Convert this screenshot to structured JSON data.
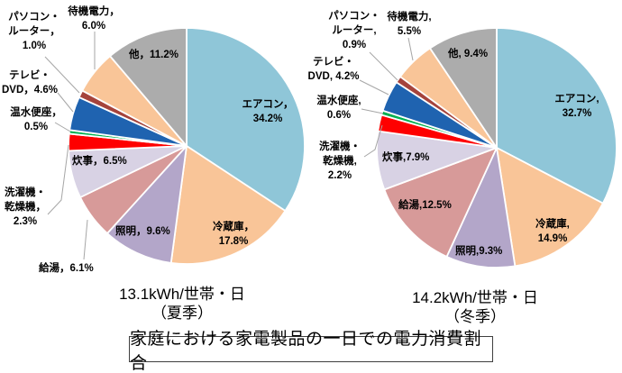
{
  "title": "家庭における家電製品の一日での電力消費割合",
  "unit": "%",
  "chart_data": [
    {
      "type": "pie",
      "caption": "13.1kWh/世帯・日\n（夏季）",
      "caption_line1": "13.1kWh/世帯・日",
      "caption_line2": "（夏季）",
      "start_angle_deg": 0,
      "direction": "clockwise",
      "legend": "none",
      "slices": [
        {
          "key": "aircon",
          "name": "エアコン",
          "value": 34.2,
          "color": "#8FC6D8",
          "display": "エアコン，\n34.2%"
        },
        {
          "key": "fridge",
          "name": "冷蔵庫",
          "value": 17.8,
          "color": "#F9C598",
          "display": "冷蔵庫，\n17.8%"
        },
        {
          "key": "lighting",
          "name": "照明",
          "value": 9.6,
          "color": "#B3A6C9",
          "display": "照明，9.6%"
        },
        {
          "key": "hot-water",
          "name": "給湯",
          "value": 6.1,
          "color": "#D79A99",
          "display": "給湯，6.1%"
        },
        {
          "key": "cooking",
          "name": "炊事",
          "value": 6.5,
          "color": "#D8D2E4",
          "display": "炊事，6.5%"
        },
        {
          "key": "washer-dryer",
          "name": "洗濯機・乾燥機",
          "value": 2.3,
          "color": "#FE0000",
          "display": "洗濯機・\n乾燥機，\n2.3%"
        },
        {
          "key": "toilet-seat",
          "name": "温水便座",
          "value": 0.5,
          "color": "#00B050",
          "display": "温水便座，\n0.5%"
        },
        {
          "key": "tv-dvd",
          "name": "テレビ・DVD",
          "value": 4.6,
          "color": "#1F63B0",
          "display": "テレビ・\nDVD，4.6%"
        },
        {
          "key": "pc-router",
          "name": "パソコン・ルーター",
          "value": 1.0,
          "color": "#A5433C",
          "display": "パソコン・\nルーター，\n1.0%"
        },
        {
          "key": "standby",
          "name": "待機電力",
          "value": 6.0,
          "color": "#F9C598",
          "display": "待機電力，\n6.0%"
        },
        {
          "key": "other",
          "name": "他",
          "value": 11.2,
          "color": "#ACACAC",
          "display": "他，11.2%"
        }
      ]
    },
    {
      "type": "pie",
      "caption": "14.2kWh/世帯・日\n（冬季）",
      "caption_line1": "14.2kWh/世帯・日",
      "caption_line2": "（冬季）",
      "start_angle_deg": 0,
      "direction": "clockwise",
      "legend": "none",
      "slices": [
        {
          "key": "aircon",
          "name": "エアコン",
          "value": 32.7,
          "color": "#8FC6D8",
          "display": "エアコン,\n32.7%"
        },
        {
          "key": "fridge",
          "name": "冷蔵庫",
          "value": 14.9,
          "color": "#F9C598",
          "display": "冷蔵庫,\n14.9%"
        },
        {
          "key": "lighting",
          "name": "照明",
          "value": 9.3,
          "color": "#B3A6C9",
          "display": "照明,9.3%"
        },
        {
          "key": "hot-water",
          "name": "給湯",
          "value": 12.5,
          "color": "#D79A99",
          "display": "給湯,12.5%"
        },
        {
          "key": "cooking",
          "name": "炊事",
          "value": 7.9,
          "color": "#D8D2E4",
          "display": "炊事,7.9%"
        },
        {
          "key": "washer-dryer",
          "name": "洗濯機・乾燥機",
          "value": 2.2,
          "color": "#FE0000",
          "display": "洗濯機・\n乾燥機,\n2.2%"
        },
        {
          "key": "toilet-seat",
          "name": "温水便座",
          "value": 0.6,
          "color": "#00B050",
          "display": "温水便座,\n0.6%"
        },
        {
          "key": "tv-dvd",
          "name": "テレビ・DVD",
          "value": 4.2,
          "color": "#1F63B0",
          "display": "テレビ・\nDVD, 4.2%"
        },
        {
          "key": "pc-router",
          "name": "パソコン・ルーター",
          "value": 0.9,
          "color": "#A5433C",
          "display": "パソコン・\nルーター,\n0.9%"
        },
        {
          "key": "standby",
          "name": "待機電力",
          "value": 5.5,
          "color": "#F9C598",
          "display": "待機電力,\n5.5%"
        },
        {
          "key": "other",
          "name": "他",
          "value": 9.4,
          "color": "#ACACAC",
          "display": "他, 9.4%"
        }
      ]
    }
  ]
}
